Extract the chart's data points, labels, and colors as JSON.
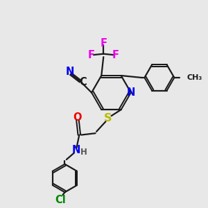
{
  "bg_color": "#e8e8e8",
  "bond_color": "#1a1a1a",
  "bond_lw": 1.6,
  "atom_colors": {
    "N": "#0000ee",
    "O": "#ee0000",
    "S": "#bbbb00",
    "F": "#ee00ee",
    "Cl": "#008800",
    "H": "#555555",
    "C": "#1a1a1a"
  },
  "font_size_atom": 10.5,
  "font_size_small": 8.5,
  "font_size_ch3": 8
}
